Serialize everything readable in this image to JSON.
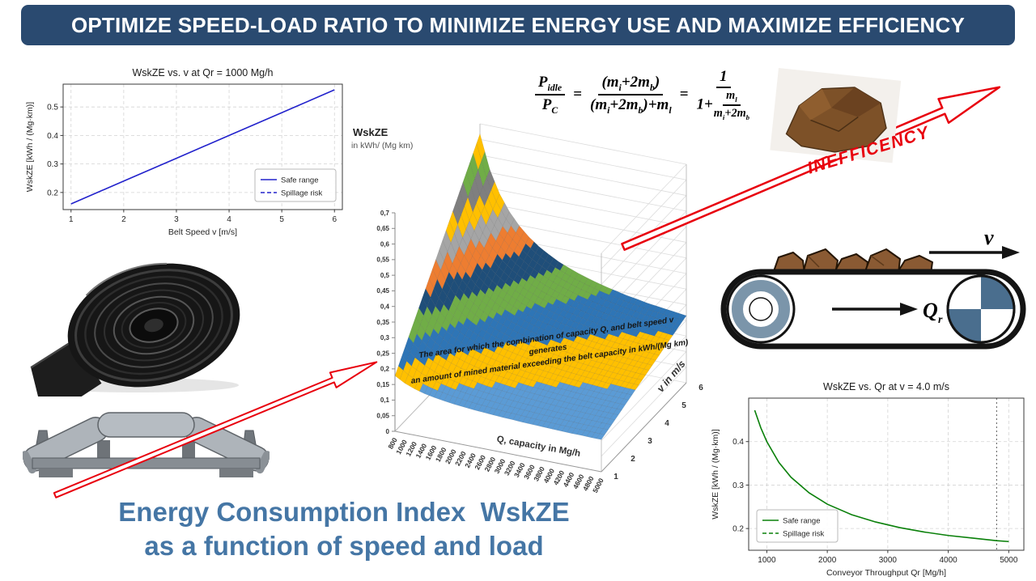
{
  "banner": {
    "title": "OPTIMIZE SPEED-LOAD RATIO TO MINIMIZE ENERGY USE AND MAXIMIZE EFFICIENCY"
  },
  "colors": {
    "banner_bg": "#2a4a70",
    "caption_text": "#4576a5",
    "highlight_red": "#e8000d",
    "safe_range_blue": "#2222cc",
    "safe_range_green": "#0a800a"
  },
  "formula": {
    "P": "P",
    "idle": "idle",
    "C": "C",
    "eq": "=",
    "one": "1",
    "one_plus": "1+",
    "m": "m",
    "i": "i",
    "b": "b",
    "l": "l",
    "plus": "+",
    "two": "2",
    "lp": "(",
    "rp": ")"
  },
  "inefficiency": {
    "label": "INEFFICENCY"
  },
  "conveyor": {
    "v_label": "v",
    "q_label": "Q",
    "q_sub": "r"
  },
  "caption": {
    "line1": "Energy Consumption Index  WskZE",
    "line2": "as a function of speed and load"
  },
  "chart_data": [
    {
      "type": "line",
      "title": "WskZE vs. v at Qr = 1000 Mg/h",
      "xlabel": "Belt Speed v [m/s]",
      "ylabel": "WskZE [kWh / (Mg·km)]",
      "xlim": [
        0.85,
        6.15
      ],
      "ylim": [
        0.14,
        0.58
      ],
      "xticks": [
        1,
        2,
        3,
        4,
        5,
        6
      ],
      "yticks": [
        0.2,
        0.3,
        0.4,
        0.5
      ],
      "grid": true,
      "legend_pos": "lower right",
      "series": [
        {
          "name": "Safe range",
          "color": "#2222cc",
          "style": "solid",
          "x": [
            1,
            2,
            3,
            4,
            5,
            6
          ],
          "y": [
            0.16,
            0.24,
            0.32,
            0.4,
            0.48,
            0.56
          ]
        },
        {
          "name": "Spillage risk",
          "color": "#2222cc",
          "style": "dashed",
          "x": [],
          "y": []
        }
      ]
    },
    {
      "type": "surface",
      "zlabel_line1": "WskZE",
      "zlabel_line2": "in kWh/ (Mg km)",
      "xlabel": "Q, capacity in Mg/h",
      "ylabel": "v in m/s",
      "zlim": [
        0,
        0.7
      ],
      "band_step": 0.05,
      "ztick_labels": [
        "0",
        "0,05",
        "0,1",
        "0,15",
        "0,2",
        "0,25",
        "0,3",
        "0,35",
        "0,4",
        "0,45",
        "0,5",
        "0,55",
        "0,6",
        "0,65",
        "0,7"
      ],
      "band_colors": [
        "#4472C4",
        "#ED7D31",
        "#5B9BD5",
        "#FFC000",
        "#2E75B6",
        "#70AD47",
        "#1F4E79",
        "#ED7D31",
        "#A5A5A5",
        "#FFC000",
        "#7F7F7F",
        "#70AD47",
        "#FFC000",
        "#548235"
      ],
      "x": [
        800,
        1000,
        1200,
        1400,
        1600,
        1800,
        2000,
        2200,
        2400,
        2600,
        2800,
        3000,
        3200,
        3400,
        3600,
        3800,
        4000,
        4200,
        4400,
        4600,
        4800,
        5000
      ],
      "y": [
        1,
        2,
        3,
        4,
        5,
        6
      ],
      "z": [
        [
          0.178,
          0.16,
          0.148,
          0.139,
          0.133,
          0.128,
          0.124,
          0.121,
          0.118,
          0.116,
          0.114,
          0.112,
          0.111,
          0.109,
          0.108,
          0.107,
          0.106,
          0.105,
          0.104,
          0.104,
          0.103,
          0.103
        ],
        [
          0.276,
          0.24,
          0.216,
          0.199,
          0.186,
          0.176,
          0.168,
          0.162,
          0.156,
          0.152,
          0.148,
          0.144,
          0.141,
          0.139,
          0.136,
          0.134,
          0.132,
          0.13,
          0.129,
          0.127,
          0.126,
          0.125
        ],
        [
          0.374,
          0.32,
          0.284,
          0.258,
          0.239,
          0.224,
          0.212,
          0.202,
          0.194,
          0.187,
          0.181,
          0.176,
          0.172,
          0.168,
          0.164,
          0.161,
          0.158,
          0.156,
          0.153,
          0.151,
          0.149,
          0.148
        ],
        [
          0.472,
          0.4,
          0.352,
          0.318,
          0.292,
          0.272,
          0.256,
          0.243,
          0.232,
          0.223,
          0.215,
          0.208,
          0.202,
          0.197,
          0.192,
          0.188,
          0.184,
          0.181,
          0.178,
          0.175,
          0.172,
          0.17
        ],
        [
          0.57,
          0.48,
          0.42,
          0.377,
          0.345,
          0.32,
          0.3,
          0.284,
          0.27,
          0.259,
          0.249,
          0.24,
          0.233,
          0.226,
          0.22,
          0.215,
          0.211,
          0.206,
          0.202,
          0.199,
          0.196,
          0.193
        ],
        [
          0.668,
          0.56,
          0.488,
          0.437,
          0.398,
          0.368,
          0.344,
          0.325,
          0.308,
          0.295,
          0.283,
          0.273,
          0.264,
          0.256,
          0.249,
          0.242,
          0.237,
          0.231,
          0.227,
          0.223,
          0.219,
          0.215
        ]
      ],
      "annotation_line1": "The area for which the combination of capacity Q, and belt speed v generates",
      "annotation_line2": "an amount of mined material exceeding the belt capacity in kWh/(Mg km)"
    },
    {
      "type": "line",
      "title": "WskZE vs. Qr at v = 4.0 m/s",
      "xlabel": "Conveyor Throughput Qr [Mg/h]",
      "ylabel": "WskZE [kWh / (Mg·km)]",
      "xlim": [
        700,
        5250
      ],
      "ylim": [
        0.15,
        0.5
      ],
      "xticks": [
        1000,
        2000,
        3000,
        4000,
        5000
      ],
      "yticks": [
        0.2,
        0.3,
        0.4
      ],
      "grid": true,
      "legend_pos": "lower left",
      "vline": {
        "x": 4800,
        "style": "dotted",
        "color": "#666666"
      },
      "series": [
        {
          "name": "Safe range",
          "color": "#0a800a",
          "style": "solid",
          "x": [
            800,
            900,
            1000,
            1200,
            1400,
            1700,
            2000,
            2400,
            2800,
            3200,
            3600,
            4000,
            4400,
            4800,
            5000
          ],
          "y": [
            0.472,
            0.432,
            0.4,
            0.352,
            0.318,
            0.282,
            0.256,
            0.232,
            0.215,
            0.202,
            0.192,
            0.184,
            0.178,
            0.172,
            0.17
          ]
        },
        {
          "name": "Spillage risk",
          "color": "#0a800a",
          "style": "dashed",
          "x": [],
          "y": []
        }
      ]
    }
  ]
}
